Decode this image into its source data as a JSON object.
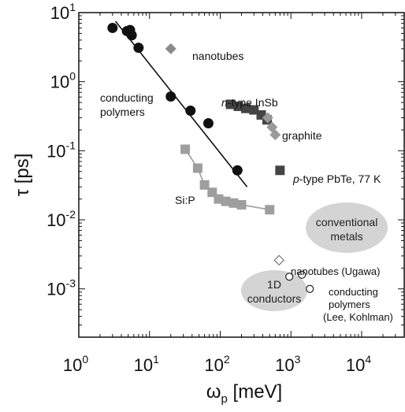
{
  "chart_data": {
    "type": "scatter",
    "x_scale": "log",
    "y_scale": "log",
    "xlim": [
      1,
      40000
    ],
    "ylim": [
      0.0002,
      10
    ],
    "x_ticks": [
      1,
      10,
      100,
      1000,
      10000
    ],
    "x_tick_labels": [
      {
        "base": "10",
        "exp": "0"
      },
      {
        "base": "10",
        "exp": "1"
      },
      {
        "base": "10",
        "exp": "2"
      },
      {
        "base": "10",
        "exp": "3"
      },
      {
        "base": "10",
        "exp": "4"
      }
    ],
    "y_ticks": [
      0.001,
      0.01,
      0.1,
      1,
      10
    ],
    "y_tick_labels": [
      {
        "base": "10",
        "exp": "-3"
      },
      {
        "base": "10",
        "exp": "-2"
      },
      {
        "base": "10",
        "exp": "-1"
      },
      {
        "base": "10",
        "exp": "0"
      },
      {
        "base": "10",
        "exp": "1"
      }
    ],
    "xlabel": {
      "main": "ω",
      "sub": "p",
      "rest": " [meV]"
    },
    "ylabel": "τ [ps]",
    "grid": false,
    "colors": {
      "conducting_polymers": "#111111",
      "nanotubes": "#8a8a8a",
      "inSb": "#444444",
      "graphite": "#999999",
      "pbTe": "#444444",
      "siP": "#9e9e9e",
      "region": "#d4d4d4"
    },
    "series": [
      {
        "name": "conducting polymers",
        "marker": "circle",
        "points": [
          [
            3,
            6
          ],
          [
            4.8,
            5.4
          ],
          [
            5.3,
            5.6
          ],
          [
            5.6,
            4.7
          ],
          [
            7,
            3.1
          ],
          [
            20,
            0.61
          ],
          [
            38,
            0.38
          ],
          [
            68,
            0.25
          ],
          [
            175,
            0.052
          ]
        ],
        "fit_line": [
          [
            3.3,
            7.5
          ],
          [
            240,
            0.03
          ]
        ]
      },
      {
        "name": "nanotubes",
        "marker": "diamond",
        "points": [
          [
            20,
            3.0
          ]
        ]
      },
      {
        "name": "n-type InSb",
        "marker": "square",
        "connected": true,
        "points": [
          [
            140,
            0.47
          ],
          [
            180,
            0.44
          ],
          [
            230,
            0.41
          ],
          [
            300,
            0.39
          ],
          [
            380,
            0.33
          ],
          [
            460,
            0.28
          ]
        ]
      },
      {
        "name": "graphite",
        "marker": "diamond",
        "connected": true,
        "points": [
          [
            470,
            0.3
          ],
          [
            540,
            0.22
          ],
          [
            600,
            0.17
          ]
        ]
      },
      {
        "name": "p-type PbTe, 77 K",
        "marker": "square",
        "points": [
          [
            700,
            0.052
          ]
        ]
      },
      {
        "name": "Si:P",
        "marker": "square",
        "connected": true,
        "points": [
          [
            32,
            0.105
          ],
          [
            48,
            0.056
          ],
          [
            60,
            0.032
          ],
          [
            77,
            0.025
          ],
          [
            95,
            0.02
          ],
          [
            120,
            0.0185
          ],
          [
            155,
            0.0175
          ],
          [
            200,
            0.0165
          ],
          [
            500,
            0.014
          ]
        ]
      },
      {
        "name": "nanotubes (Ugawa)",
        "marker": "open-diamond",
        "points": [
          [
            680,
            0.0026
          ]
        ]
      },
      {
        "name": "conducting polymers (Lee, Kohlman)",
        "marker": "open-circle",
        "points": [
          [
            950,
            0.0015
          ],
          [
            1430,
            0.0016
          ],
          [
            1850,
            0.001
          ]
        ]
      }
    ],
    "annotations": {
      "nanotubes": "nanotubes",
      "conducting_polymers_1": "conducting",
      "conducting_polymers_2": "polymers",
      "inSb_italic": "n",
      "inSb_rest": "-type InSb",
      "graphite": "graphite",
      "pbTe_italic": "p",
      "pbTe_rest": "-type PbTe, 77 K",
      "siP": "Si:P",
      "conventional_metals_1": "conventional",
      "conventional_metals_2": "metals",
      "oneD_conductors_1": "1D",
      "oneD_conductors_2": "conductors",
      "nanotubes_ugawa": "nanotubes (Ugawa)",
      "lee_kohlman_1": "conducting",
      "lee_kohlman_2": "polymers",
      "lee_kohlman_3": "(Lee, Kohlman)"
    }
  }
}
